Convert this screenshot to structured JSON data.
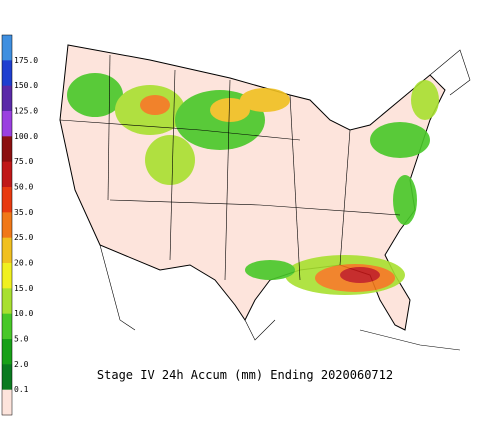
{
  "title": "Stage IV 24h Accum (mm) Ending 2020060712",
  "legend": {
    "labels": [
      "175.0",
      "150.0",
      "125.0",
      "100.0",
      "75.0",
      "50.0",
      "35.0",
      "25.0",
      "20.0",
      "15.0",
      "10.0",
      "5.0",
      "2.0",
      "0.1"
    ],
    "colors": [
      "#3f8fe0",
      "#1f3fd0",
      "#5a2aa8",
      "#9a40e0",
      "#8b1010",
      "#c01818",
      "#e83a10",
      "#f07818",
      "#f0c020",
      "#f0f020",
      "#a8e030",
      "#48c828",
      "#18a018",
      "#0a7a20",
      "#fde4dc"
    ]
  }
}
